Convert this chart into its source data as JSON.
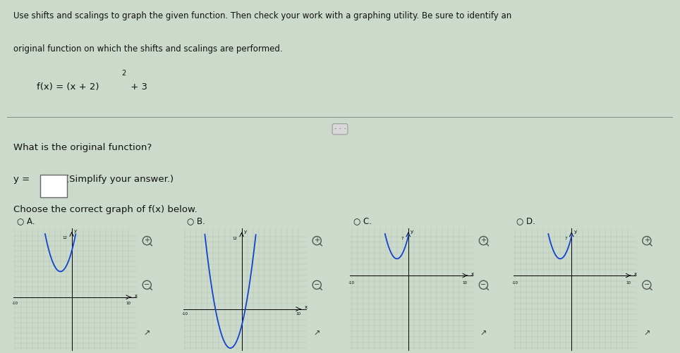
{
  "title_line1": "Use shifts and scalings to graph the given function. Then check your work with a graphing utility. Be sure to identify an",
  "title_line2": "original function on which the shifts and scalings are performed.",
  "func_label": "f(x) = (x + 2)",
  "func_exp": "2",
  "func_tail": " + 3",
  "question1": "What is the original function?",
  "q2_prefix": "y =",
  "q2_suffix": "(Simplify your answer.)",
  "question3": "Choose the correct graph of f(x) below.",
  "labels": [
    "A.",
    "B.",
    "C.",
    "D."
  ],
  "bg_color": "#ccdacc",
  "graph_bg": "#dce8dc",
  "grid_color_major": "#aabcaa",
  "grid_color_minor": "#c4d4c4",
  "curve_color": "#1144cc",
  "text_color": "#111111",
  "sep_color": "#888888",
  "graph_specs": [
    {
      "xlim": [
        -10,
        10
      ],
      "ylim": [
        -10,
        12
      ],
      "vertex_x": -2,
      "vertex_y": 5,
      "ytop_label": "12",
      "xright_label": "10",
      "xleft_label": "-10"
    },
    {
      "xlim": [
        -10,
        10
      ],
      "ylim": [
        -7,
        13
      ],
      "vertex_x": -2,
      "vertex_y": -7,
      "ytop_label": "12",
      "xright_label": "10",
      "xleft_label": "-10"
    },
    {
      "xlim": [
        -10,
        10
      ],
      "ylim": [
        -13,
        7
      ],
      "vertex_x": -2,
      "vertex_y": 3,
      "ytop_label": "7",
      "xright_label": "10",
      "xleft_label": "-10"
    },
    {
      "xlim": [
        -10,
        10
      ],
      "ylim": [
        -13,
        7
      ],
      "vertex_x": -2,
      "vertex_y": 3,
      "ytop_label": "7",
      "xright_label": "10",
      "xleft_label": "-10"
    }
  ]
}
